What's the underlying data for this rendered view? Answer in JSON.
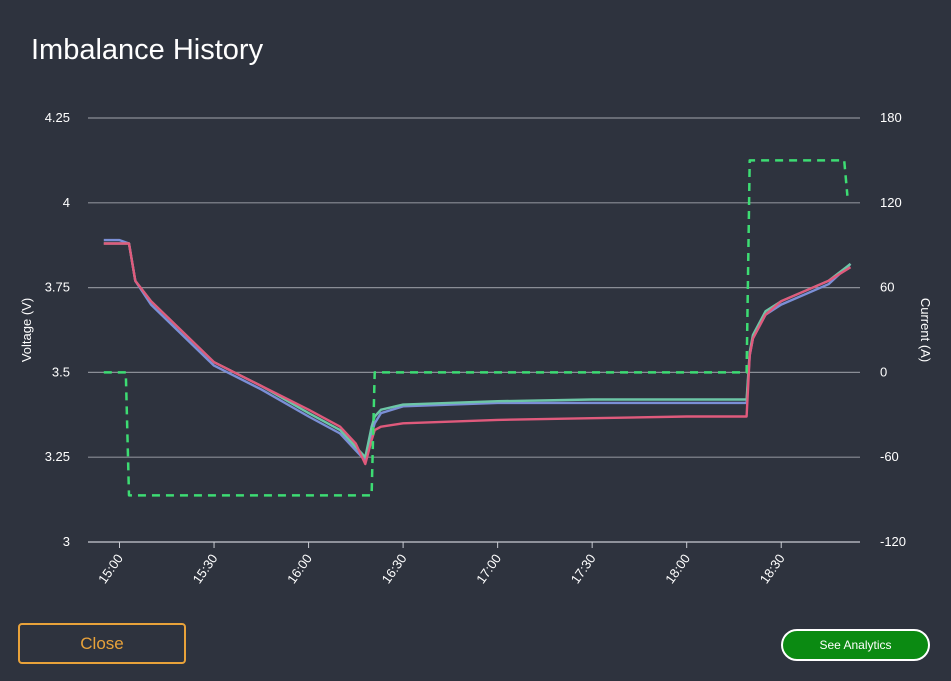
{
  "dialog": {
    "title": "Imbalance History",
    "close_label": "Close",
    "analytics_label": "See Analytics"
  },
  "colors": {
    "background": "#2e333e",
    "close_accent": "#e8a23a",
    "analytics_bg": "#0b8a12",
    "current_line": "#3ddc73"
  },
  "chart_data": {
    "type": "line",
    "title": "",
    "ylabel": "Voltage (V)",
    "y2label": "Current (A)",
    "ylim": [
      3,
      4.25
    ],
    "y2lim": [
      -120,
      180
    ],
    "yticks": [
      "4.25",
      "4",
      "3.75",
      "3.5",
      "3.25",
      "3"
    ],
    "y2ticks": [
      "180",
      "120",
      "60",
      "0",
      "-60",
      "-120"
    ],
    "xticks": [
      "15:00",
      "15:30",
      "16:00",
      "16:30",
      "17:00",
      "17:30",
      "18:00",
      "18:30"
    ],
    "grid": true,
    "series": [
      {
        "color": "#7b8fd6",
        "axis": "left",
        "x": [
          "14:55",
          "15:00",
          "15:03",
          "15:05",
          "15:10",
          "15:20",
          "15:30",
          "15:45",
          "16:00",
          "16:10",
          "16:15",
          "16:18",
          "16:20",
          "16:21",
          "16:23",
          "16:30",
          "17:00",
          "17:30",
          "18:00",
          "18:15",
          "18:19",
          "18:20",
          "18:21",
          "18:25",
          "18:30",
          "18:45",
          "18:52"
        ],
        "values": [
          3.89,
          3.89,
          3.88,
          3.77,
          3.7,
          3.61,
          3.52,
          3.45,
          3.37,
          3.32,
          3.27,
          3.24,
          3.32,
          3.35,
          3.38,
          3.4,
          3.41,
          3.41,
          3.41,
          3.41,
          3.41,
          3.55,
          3.6,
          3.67,
          3.7,
          3.76,
          3.82
        ]
      },
      {
        "color": "#6cc6a6",
        "axis": "left",
        "x": [
          "14:55",
          "15:00",
          "15:03",
          "15:05",
          "15:10",
          "15:20",
          "15:30",
          "15:45",
          "16:00",
          "16:10",
          "16:15",
          "16:18",
          "16:20",
          "16:21",
          "16:23",
          "16:30",
          "17:00",
          "17:30",
          "18:00",
          "18:15",
          "18:19",
          "18:20",
          "18:21",
          "18:25",
          "18:30",
          "18:45",
          "18:52"
        ],
        "values": [
          3.88,
          3.88,
          3.88,
          3.77,
          3.71,
          3.62,
          3.53,
          3.46,
          3.38,
          3.33,
          3.28,
          3.25,
          3.34,
          3.37,
          3.39,
          3.405,
          3.415,
          3.42,
          3.42,
          3.42,
          3.42,
          3.56,
          3.61,
          3.68,
          3.71,
          3.77,
          3.82
        ]
      },
      {
        "color": "#e05a7c",
        "axis": "left",
        "x": [
          "14:55",
          "15:00",
          "15:03",
          "15:05",
          "15:10",
          "15:20",
          "15:30",
          "15:45",
          "16:00",
          "16:10",
          "16:15",
          "16:18",
          "16:20",
          "16:21",
          "16:23",
          "16:30",
          "17:00",
          "17:30",
          "18:00",
          "18:15",
          "18:19",
          "18:20",
          "18:21",
          "18:25",
          "18:30",
          "18:45",
          "18:52"
        ],
        "values": [
          3.88,
          3.88,
          3.88,
          3.77,
          3.71,
          3.62,
          3.53,
          3.46,
          3.39,
          3.34,
          3.29,
          3.23,
          3.3,
          3.33,
          3.34,
          3.35,
          3.36,
          3.365,
          3.37,
          3.37,
          3.37,
          3.55,
          3.6,
          3.67,
          3.71,
          3.77,
          3.81
        ]
      },
      {
        "color": "#3ddc73",
        "axis": "right",
        "dashed": true,
        "x": [
          "14:55",
          "15:02",
          "15:03",
          "16:20",
          "16:21",
          "18:19",
          "18:20",
          "18:50",
          "18:51"
        ],
        "values": [
          0,
          0,
          -87,
          -87,
          0,
          0,
          150,
          150,
          125
        ]
      }
    ]
  }
}
